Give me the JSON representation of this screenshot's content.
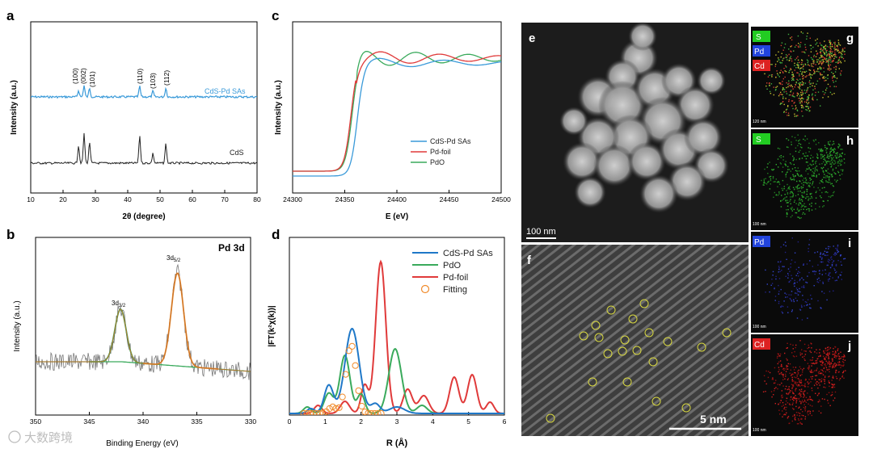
{
  "panel_labels": {
    "a": "a",
    "b": "b",
    "c": "c",
    "d": "d",
    "e": "e",
    "f": "f",
    "g": "g",
    "h": "h",
    "i": "i",
    "j": "j"
  },
  "colors": {
    "blue": "#3a9ad9",
    "black": "#222222",
    "red": "#e03a3a",
    "green": "#3aaa5c",
    "orange": "#f08a2a",
    "sblue": "#1f78c8"
  },
  "chart_data": [
    {
      "id": "a",
      "type": "line",
      "xlabel": "2θ (degree)",
      "ylabel": "Intensity (a.u.)",
      "xlim": [
        10,
        80
      ],
      "xticks": [
        10,
        20,
        30,
        40,
        50,
        60,
        70,
        80
      ],
      "series": [
        {
          "name": "CdS-Pd SAs",
          "peaks": [
            [
              24.8,
              8
            ],
            [
              26.5,
              14
            ],
            [
              28.2,
              11
            ],
            [
              43.7,
              13
            ],
            [
              47.8,
              7
            ],
            [
              51.8,
              11
            ]
          ]
        },
        {
          "name": "CdS",
          "peaks": [
            [
              24.8,
              22
            ],
            [
              26.5,
              36
            ],
            [
              28.2,
              26
            ],
            [
              43.7,
              34
            ],
            [
              47.8,
              12
            ],
            [
              51.8,
              24
            ]
          ]
        }
      ],
      "annotations": [
        "(100)",
        "(002)",
        "(101)",
        "(110)",
        "(103)",
        "(112)"
      ]
    },
    {
      "id": "b",
      "type": "line",
      "title": "Pd 3d",
      "xlabel": "Binding Energy (eV)",
      "ylabel": "Intensity (a.u.)",
      "xlim": [
        350,
        330
      ],
      "xticks": [
        350,
        345,
        340,
        335,
        330
      ],
      "peaks": [
        {
          "label": "3d3/2",
          "main": "3d",
          "sub": "3/2",
          "center": 342.1
        },
        {
          "label": "3d5/2",
          "main": "3d",
          "sub": "5/2",
          "center": 336.8
        }
      ]
    },
    {
      "id": "c",
      "type": "line",
      "xlabel": "E (eV)",
      "ylabel": "Intensity (a.u.)",
      "xlim": [
        24300,
        24500
      ],
      "xticks": [
        24300,
        24350,
        24400,
        24450,
        24500
      ],
      "legend": [
        "CdS-Pd SAs",
        "Pd-foil",
        "PdO"
      ]
    },
    {
      "id": "d",
      "type": "line",
      "ylabel": "|FT(k²χ(k))|",
      "xlabel": "R (Å)",
      "xlim": [
        0,
        6
      ],
      "xticks": [
        0,
        1,
        2,
        3,
        4,
        5,
        6
      ],
      "legend": [
        "CdS-Pd SAs",
        "PdO",
        "Pd-foil",
        "Fitting"
      ]
    }
  ],
  "images": {
    "e": {
      "scale": "100 nm"
    },
    "f": {
      "scale": "5 nm"
    },
    "g": {
      "labels": [
        "S",
        "Pd",
        "Cd"
      ],
      "scale": "120 nm"
    },
    "h": {
      "label": "S",
      "scale": "100 nm"
    },
    "i": {
      "label": "Pd",
      "scale": "100 nm"
    },
    "j": {
      "label": "Cd",
      "scale": "100 nm"
    }
  },
  "watermark": "大数跨境"
}
